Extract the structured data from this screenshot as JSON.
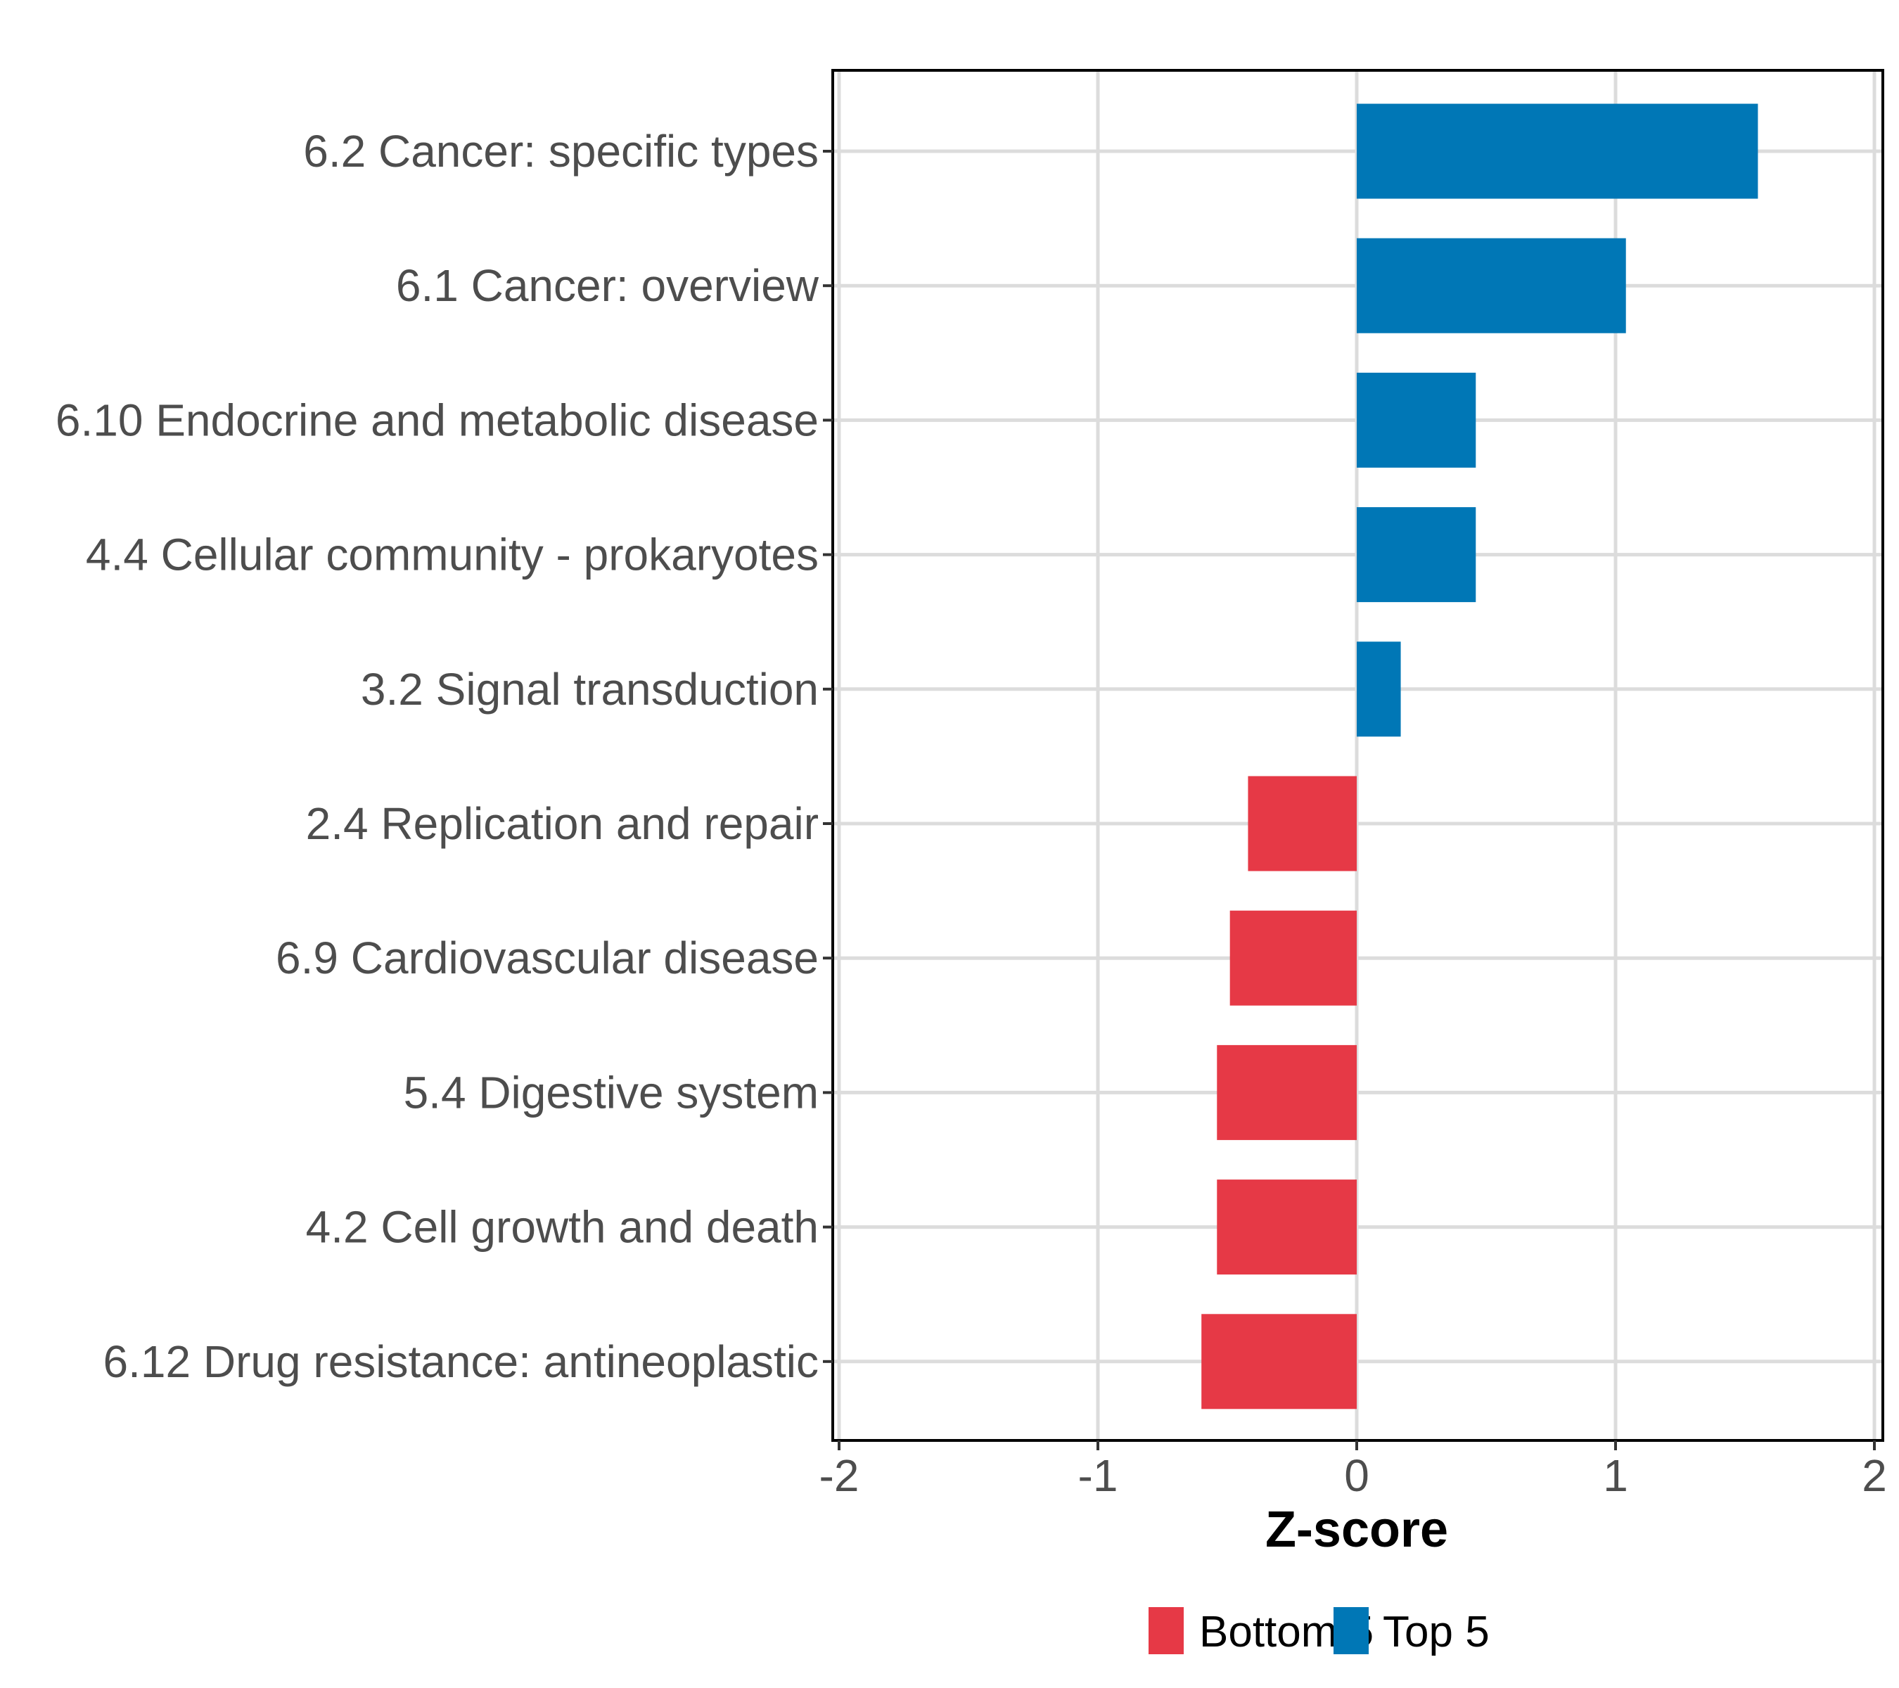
{
  "chart_data": {
    "type": "bar",
    "orientation": "horizontal",
    "title": "",
    "xlabel": "Z-score",
    "ylabel": "",
    "xlim": [
      -2,
      2
    ],
    "x_ticks": [
      "-2",
      "-1",
      "0",
      "1",
      "2"
    ],
    "x_tick_values": [
      -2,
      -1,
      0,
      1,
      2
    ],
    "grid": true,
    "legend_position": "bottom",
    "categories": [
      "6.2 Cancer: specific types",
      "6.1 Cancer: overview",
      "6.10 Endocrine and metabolic disease",
      "4.4 Cellular community - prokaryotes",
      "3.2 Signal transduction",
      "2.4 Replication and repair",
      "6.9 Cardiovascular disease",
      "5.4 Digestive system",
      "4.2 Cell growth and death",
      "6.12 Drug resistance: antineoplastic"
    ],
    "values": [
      1.55,
      1.04,
      0.46,
      0.46,
      0.17,
      -0.42,
      -0.49,
      -0.54,
      -0.54,
      -0.6
    ],
    "groups": [
      "Top 5",
      "Top 5",
      "Top 5",
      "Top 5",
      "Top 5",
      "Bottom 5",
      "Bottom 5",
      "Bottom 5",
      "Bottom 5",
      "Bottom 5"
    ],
    "legend": [
      {
        "label": "Bottom 5",
        "color": "#E63946"
      },
      {
        "label": "Top 5",
        "color": "#0077B6"
      }
    ],
    "colors": {
      "Top 5": "#0077B6",
      "Bottom 5": "#E63946"
    }
  }
}
